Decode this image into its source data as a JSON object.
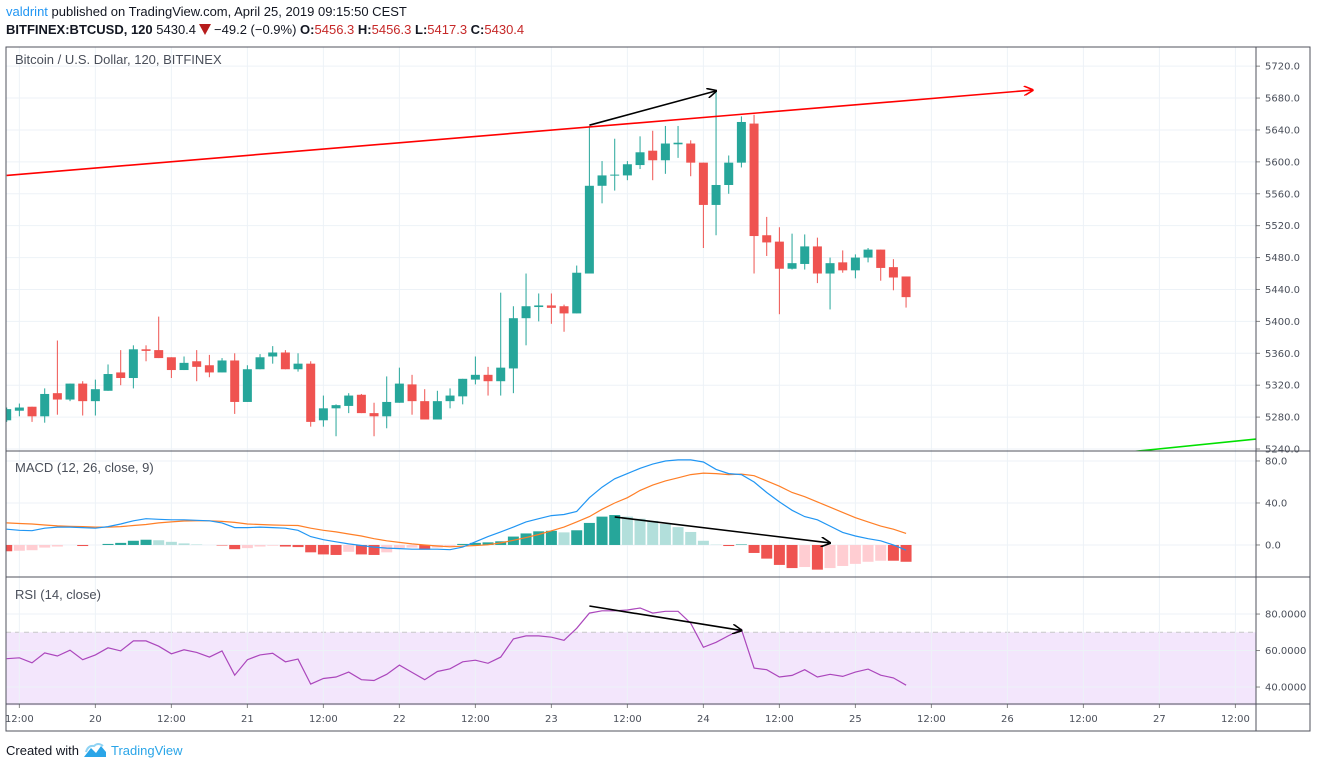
{
  "header": {
    "author": "valdrint",
    "published": " published on TradingView.com, April 25, 2019 09:15:50 CEST",
    "symbol": "BITFINEX:BTCUSD, 120",
    "last": "5430.4",
    "change": "−49.2 (−0.9%)",
    "o_label": "O:",
    "o": "5456.3",
    "h_label": "H:",
    "h": "5456.3",
    "l_label": "L:",
    "l": "5417.3",
    "c_label": "C:",
    "c": "5430.4",
    "direction_icon": "triangle-down-icon"
  },
  "footer": {
    "created": "Created with",
    "brand": "TradingView",
    "logo_icon": "tradingview-cloud-icon"
  },
  "colors": {
    "up": "#26a69a",
    "down": "#ef5350",
    "up_pale": "#b2dfdb",
    "down_pale": "#ffcdd2",
    "macd": "#2196f3",
    "signal": "#ff7f27",
    "rsi": "#ab47bc",
    "rsi_band": "#f3e6fc",
    "trendline": "#ff0000",
    "support_line": "#00e000",
    "arrow": "#000000",
    "grid": "#edf2f7"
  },
  "chart_data": [
    {
      "type": "candlestick",
      "title": "Bitcoin / U.S. Dollar, 120, BITFINEX",
      "ylim": [
        5237.5,
        5744
      ],
      "y_ticks": [
        "5720.0",
        "5680.0",
        "5640.0",
        "5600.0",
        "5560.0",
        "5520.0",
        "5480.0",
        "5440.0",
        "5400.0",
        "5360.0",
        "5320.0",
        "5280.0",
        "5240.0"
      ],
      "grid": true,
      "x_ticks": [
        {
          "t": "04-19 12:00",
          "label": "12:00"
        },
        {
          "t": "04-20 00:00",
          "label": "20"
        },
        {
          "t": "04-20 12:00",
          "label": "12:00"
        },
        {
          "t": "04-21 00:00",
          "label": "21"
        },
        {
          "t": "04-21 12:00",
          "label": "12:00"
        },
        {
          "t": "04-22 00:00",
          "label": "22"
        },
        {
          "t": "04-22 12:00",
          "label": "12:00"
        },
        {
          "t": "04-23 00:00",
          "label": "23"
        },
        {
          "t": "04-23 12:00",
          "label": "12:00"
        },
        {
          "t": "04-24 00:00",
          "label": "24"
        },
        {
          "t": "04-24 12:00",
          "label": "12:00"
        },
        {
          "t": "04-25 00:00",
          "label": "25"
        },
        {
          "t": "04-25 12:00",
          "label": "12:00"
        },
        {
          "t": "04-26 00:00",
          "label": "26"
        },
        {
          "t": "04-26 12:00",
          "label": "12:00"
        },
        {
          "t": "04-27 00:00",
          "label": "27"
        },
        {
          "t": "04-27 12:00",
          "label": "12:00"
        }
      ],
      "times": [
        "04-19 10:00",
        "04-19 12:00",
        "04-19 14:00",
        "04-19 16:00",
        "04-19 18:00",
        "04-19 20:00",
        "04-19 22:00",
        "04-20 00:00",
        "04-20 02:00",
        "04-20 04:00",
        "04-20 06:00",
        "04-20 08:00",
        "04-20 10:00",
        "04-20 12:00",
        "04-20 14:00",
        "04-20 16:00",
        "04-20 18:00",
        "04-20 20:00",
        "04-20 22:00",
        "04-21 00:00",
        "04-21 02:00",
        "04-21 04:00",
        "04-21 06:00",
        "04-21 08:00",
        "04-21 10:00",
        "04-21 12:00",
        "04-21 14:00",
        "04-21 16:00",
        "04-21 18:00",
        "04-21 20:00",
        "04-21 22:00",
        "04-22 00:00",
        "04-22 02:00",
        "04-22 04:00",
        "04-22 06:00",
        "04-22 08:00",
        "04-22 10:00",
        "04-22 12:00",
        "04-22 14:00",
        "04-22 16:00",
        "04-22 18:00",
        "04-22 20:00",
        "04-22 22:00",
        "04-23 00:00",
        "04-23 02:00",
        "04-23 04:00",
        "04-23 06:00",
        "04-23 08:00",
        "04-23 10:00",
        "04-23 12:00",
        "04-23 14:00",
        "04-23 16:00",
        "04-23 18:00",
        "04-23 20:00",
        "04-23 22:00",
        "04-24 00:00",
        "04-24 02:00",
        "04-24 04:00",
        "04-24 06:00",
        "04-24 08:00",
        "04-24 10:00",
        "04-24 12:00",
        "04-24 14:00",
        "04-24 16:00",
        "04-24 18:00",
        "04-24 20:00",
        "04-24 22:00",
        "04-25 00:00",
        "04-25 02:00",
        "04-25 04:00",
        "04-25 06:00",
        "04-25 08:00"
      ],
      "ohlc": [
        [
          5276,
          5292,
          5274,
          5290
        ],
        [
          5288,
          5297,
          5281,
          5292
        ],
        [
          5293,
          5293,
          5274,
          5281
        ],
        [
          5281,
          5316,
          5273,
          5309
        ],
        [
          5310,
          5376,
          5283,
          5302
        ],
        [
          5302,
          5322,
          5300,
          5322
        ],
        [
          5322,
          5325,
          5282,
          5300
        ],
        [
          5300,
          5327,
          5282,
          5315
        ],
        [
          5313,
          5346,
          5313,
          5334
        ],
        [
          5336,
          5364,
          5320,
          5329
        ],
        [
          5329,
          5370,
          5316,
          5365
        ],
        [
          5365,
          5370,
          5350,
          5363
        ],
        [
          5364,
          5406,
          5354,
          5354
        ],
        [
          5355,
          5355,
          5329,
          5339
        ],
        [
          5339,
          5356,
          5339,
          5348
        ],
        [
          5350,
          5364,
          5325,
          5343
        ],
        [
          5345,
          5358,
          5330,
          5336
        ],
        [
          5336,
          5354,
          5336,
          5351
        ],
        [
          5351,
          5360,
          5284,
          5299
        ],
        [
          5299,
          5345,
          5299,
          5340
        ],
        [
          5340,
          5359,
          5340,
          5355
        ],
        [
          5356,
          5369,
          5347,
          5361
        ],
        [
          5361,
          5364,
          5340,
          5340
        ],
        [
          5340,
          5360,
          5337,
          5347
        ],
        [
          5347,
          5350,
          5268,
          5274
        ],
        [
          5276,
          5307,
          5268,
          5291
        ],
        [
          5291,
          5296,
          5256,
          5295
        ],
        [
          5294,
          5310,
          5285,
          5307
        ],
        [
          5308,
          5309,
          5285,
          5285
        ],
        [
          5285,
          5298,
          5256,
          5281
        ],
        [
          5281,
          5331,
          5266,
          5299
        ],
        [
          5298,
          5342,
          5298,
          5322
        ],
        [
          5321,
          5333,
          5283,
          5300
        ],
        [
          5300,
          5315,
          5277,
          5277
        ],
        [
          5277,
          5313,
          5277,
          5300
        ],
        [
          5300,
          5316,
          5291,
          5307
        ],
        [
          5306,
          5328,
          5296,
          5328
        ],
        [
          5327,
          5356,
          5321,
          5333
        ],
        [
          5333,
          5343,
          5307,
          5325
        ],
        [
          5325,
          5436,
          5307,
          5342
        ],
        [
          5341,
          5419,
          5310,
          5404
        ],
        [
          5404,
          5460,
          5370,
          5419
        ],
        [
          5418,
          5435,
          5400,
          5420
        ],
        [
          5420,
          5435,
          5397,
          5417
        ],
        [
          5419,
          5421,
          5387,
          5410
        ],
        [
          5410,
          5470,
          5410,
          5461
        ],
        [
          5460,
          5645,
          5460,
          5570
        ],
        [
          5570,
          5601,
          5548,
          5583
        ],
        [
          5583,
          5629,
          5564,
          5584
        ],
        [
          5583,
          5601,
          5577,
          5597
        ],
        [
          5596,
          5632,
          5591,
          5612
        ],
        [
          5614,
          5639,
          5577,
          5602
        ],
        [
          5602,
          5645,
          5585,
          5623
        ],
        [
          5622,
          5645,
          5605,
          5624
        ],
        [
          5623,
          5627,
          5582,
          5599
        ],
        [
          5599,
          5599,
          5492,
          5546
        ],
        [
          5546,
          5690,
          5508,
          5571
        ],
        [
          5571,
          5608,
          5560,
          5599
        ],
        [
          5599,
          5657,
          5593,
          5650
        ],
        [
          5648,
          5659,
          5460,
          5507
        ],
        [
          5508,
          5531,
          5482,
          5499
        ],
        [
          5500,
          5518,
          5409,
          5466
        ],
        [
          5466,
          5510,
          5465,
          5473
        ],
        [
          5472,
          5509,
          5465,
          5494
        ],
        [
          5494,
          5505,
          5448,
          5460
        ],
        [
          5460,
          5480,
          5415,
          5473
        ],
        [
          5474,
          5489,
          5461,
          5464
        ],
        [
          5464,
          5484,
          5454,
          5480
        ],
        [
          5480,
          5492,
          5474,
          5490
        ],
        [
          5490,
          5490,
          5451,
          5467
        ],
        [
          5468,
          5478,
          5439,
          5455
        ],
        [
          5456.3,
          5456.3,
          5417.3,
          5430.4
        ]
      ],
      "drawings": [
        {
          "kind": "trendline-arrow",
          "color": "#ff0000",
          "from": {
            "t": "04-19 10:00",
            "v": 5583
          },
          "to": {
            "t": "04-26 04:00",
            "v": 5690
          }
        },
        {
          "kind": "trendline",
          "color": "#00e000",
          "from": {
            "t": "04-26 20:00",
            "v": 5237
          },
          "to": {
            "t": "04-27 16:00",
            "v": 5253
          }
        },
        {
          "kind": "arrow",
          "color": "#000000",
          "from": {
            "t": "04-23 06:00",
            "v": 5646
          },
          "to": {
            "t": "04-24 02:00",
            "v": 5689
          }
        }
      ]
    },
    {
      "type": "line+bar",
      "title": "MACD (12, 26, close, 9)",
      "ylim": [
        -30.5,
        89.5
      ],
      "y_ticks": [
        "80.0",
        "40.0",
        "0.0"
      ],
      "macd": [
        15,
        14,
        13.6,
        16,
        17,
        17,
        16.5,
        16,
        17.5,
        20,
        23,
        25,
        24.5,
        24,
        24,
        23.5,
        23,
        21,
        16.5,
        16.5,
        17,
        16.5,
        16,
        14,
        8,
        5,
        3,
        1,
        -0.5,
        -2,
        -3,
        -3.5,
        -4,
        -4,
        -4,
        -4.5,
        -2,
        3,
        8,
        12.5,
        17,
        22,
        25,
        28,
        29,
        32,
        45,
        55,
        63,
        68,
        73,
        77,
        80,
        81,
        81,
        79,
        72,
        68,
        67,
        60,
        50,
        41,
        33,
        27,
        24,
        18,
        12,
        8.5,
        6,
        4,
        0,
        -5
      ],
      "signal": [
        21,
        20.5,
        20,
        19,
        18.2,
        17.8,
        17.5,
        17,
        17,
        17.5,
        18.5,
        19.5,
        21,
        22,
        22.8,
        23,
        23,
        22.5,
        21.5,
        20,
        19.5,
        19,
        18.7,
        18.5,
        16,
        14,
        12.5,
        10.5,
        8.5,
        6,
        4,
        2.5,
        1,
        0,
        -1,
        -1.7,
        -1.2,
        -0.5,
        0.2,
        2,
        4.5,
        7,
        10,
        13.5,
        17,
        22,
        27,
        34,
        40,
        45,
        52,
        57,
        61,
        64,
        67,
        68.5,
        68,
        67,
        67.5,
        66,
        61,
        56,
        50,
        46,
        41,
        36,
        31,
        26,
        22,
        18,
        15,
        11
      ],
      "histogram": [
        -6,
        -5.5,
        -5,
        -2.5,
        -1.5,
        0,
        -1,
        0,
        1,
        2,
        4,
        5,
        4.5,
        3,
        1.5,
        0.5,
        0,
        -0.5,
        -4,
        -3,
        -1.5,
        -0.7,
        -1.5,
        -2,
        -7,
        -9,
        -9.5,
        -6.5,
        -9,
        -9.5,
        -7,
        -3,
        -2.5,
        -4.5,
        -2.5,
        -1.5,
        1,
        2,
        2.5,
        3.5,
        8,
        11,
        13,
        13.5,
        12,
        14,
        21,
        27,
        28.5,
        27,
        25,
        23,
        20,
        17,
        12.4,
        4,
        0.3,
        -1,
        0.5,
        -7.6,
        -13,
        -19,
        -22,
        -21,
        -23.5,
        -22,
        -20,
        -18,
        -16,
        -15,
        -15,
        -16
      ],
      "drawings": [
        {
          "kind": "arrow",
          "color": "#000000",
          "from": {
            "t": "04-23 10:00",
            "v": 26.7
          },
          "to": {
            "t": "04-24 20:00",
            "v": 1.9
          }
        }
      ]
    },
    {
      "type": "line",
      "title": "RSI (14, close)",
      "ylim": [
        30.7,
        100.3
      ],
      "y_ticks": [
        "80.0000",
        "60.0000",
        "40.0000"
      ],
      "band": [
        30,
        70
      ],
      "rsi": [
        55.5,
        56,
        53.3,
        58.7,
        57,
        60.2,
        55,
        57.6,
        61.5,
        59.8,
        65.3,
        65.3,
        62.4,
        58.2,
        60.4,
        59,
        56.4,
        59.8,
        46.5,
        55,
        57.6,
        58.5,
        53.8,
        55.3,
        41.6,
        44.7,
        45.5,
        48.2,
        44,
        43.6,
        47,
        52,
        48,
        44,
        48.5,
        50,
        53.8,
        54.7,
        53,
        56.4,
        66.4,
        68,
        68,
        67.3,
        65.6,
        72.2,
        80.5,
        81.8,
        81.8,
        82.2,
        83.3,
        80.5,
        81.5,
        81.5,
        75,
        61.8,
        64.5,
        68.2,
        71.6,
        50.4,
        49.5,
        45.5,
        46.4,
        49.5,
        45.5,
        47,
        45.8,
        48.2,
        49.8,
        46.5,
        45,
        41
      ],
      "drawings": [
        {
          "kind": "arrow",
          "color": "#000000",
          "from": {
            "t": "04-23 06:00",
            "v": 84.4
          },
          "to": {
            "t": "04-24 06:00",
            "v": 71
          }
        }
      ]
    }
  ]
}
